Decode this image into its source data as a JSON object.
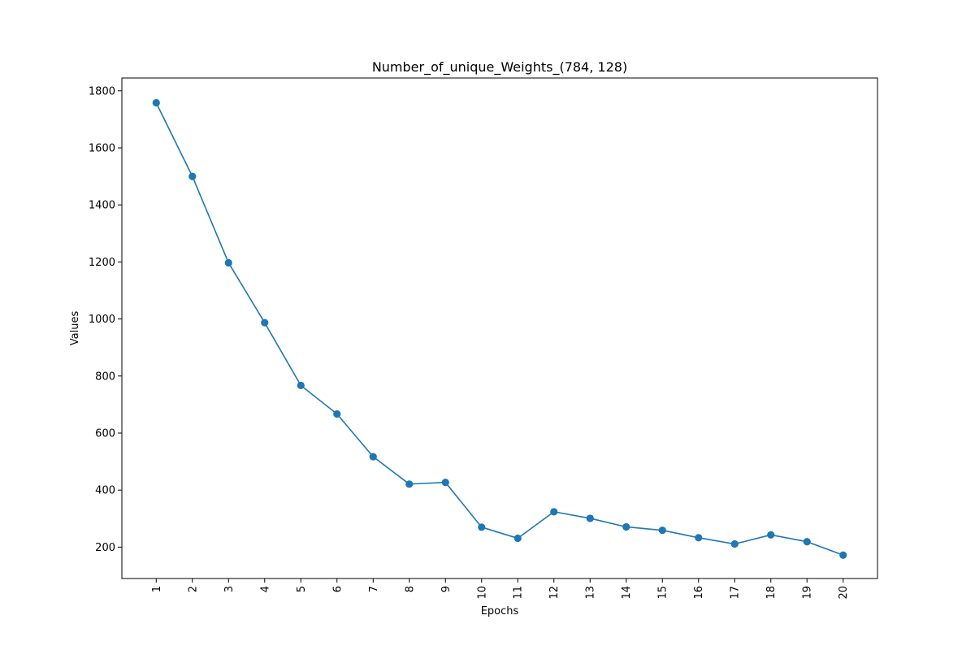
{
  "chart_data": {
    "type": "line",
    "title": "Number_of_unique_Weights_(784, 128)",
    "xlabel": "Epochs",
    "ylabel": "Values",
    "x": [
      1,
      2,
      3,
      4,
      5,
      6,
      7,
      8,
      9,
      10,
      11,
      12,
      13,
      14,
      15,
      16,
      17,
      18,
      19,
      20
    ],
    "x_tick_labels": [
      "1",
      "2",
      "3",
      "4",
      "5",
      "6",
      "7",
      "8",
      "9",
      "10",
      "11",
      "12",
      "13",
      "14",
      "15",
      "16",
      "17",
      "18",
      "19",
      "20"
    ],
    "y_ticks": [
      200,
      400,
      600,
      800,
      1000,
      1200,
      1400,
      1600,
      1800
    ],
    "ylim": [
      90,
      1845
    ],
    "xlim": [
      0.05,
      20.95
    ],
    "grid": false,
    "series": [
      {
        "values": [
          1758,
          1500,
          1197,
          987,
          767,
          667,
          517,
          421,
          427,
          270,
          231,
          324,
          301,
          271,
          259,
          233,
          211,
          243,
          219,
          172
        ],
        "color": "#1f77b4",
        "marker": "circle"
      }
    ]
  }
}
